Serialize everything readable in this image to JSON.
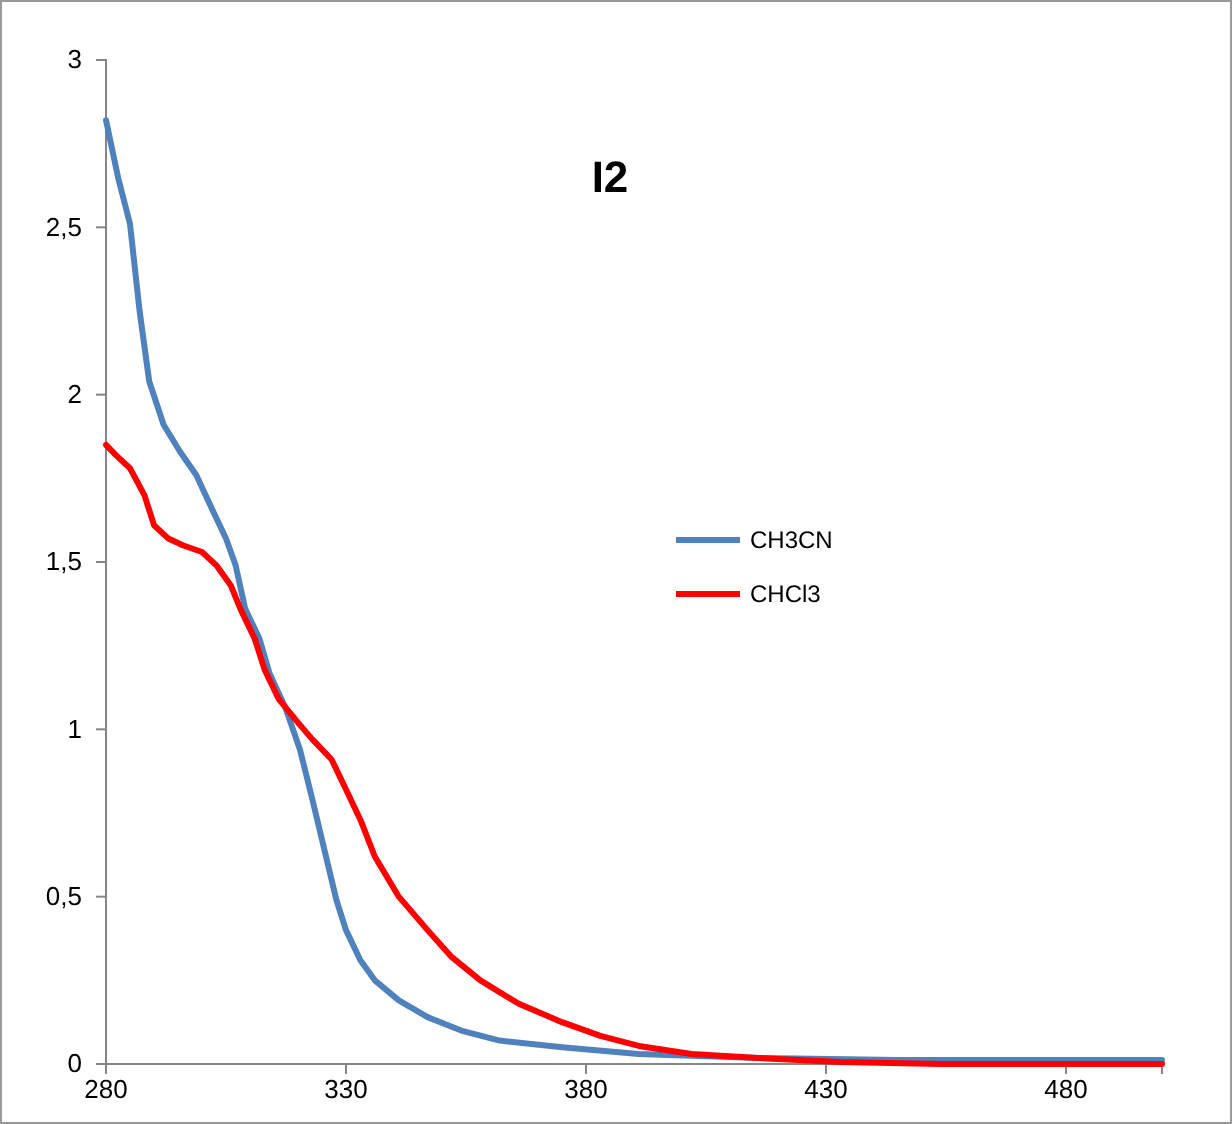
{
  "chart_data": {
    "type": "line",
    "title": "I2",
    "xlim": [
      280,
      500
    ],
    "xticks": [
      280,
      330,
      380,
      430,
      480
    ],
    "ylim": [
      0,
      3
    ],
    "yticks": [
      0,
      {
        "value": 0.5,
        "label": "0,5"
      },
      1,
      {
        "value": 1.5,
        "label": "1,5"
      },
      2,
      {
        "value": 2.5,
        "label": "2,5"
      },
      3
    ],
    "grid": false,
    "legend": "right",
    "marker": "none",
    "line_style": "solid",
    "series": [
      {
        "name": "CH3CN",
        "color": "#4f81bd",
        "x": [
          280,
          282.5,
          285,
          287,
          289,
          292,
          295.4,
          298.8,
          301.7,
          305,
          307,
          309,
          312,
          314,
          317.5,
          320.4,
          323,
          326,
          328,
          330,
          333,
          336,
          341,
          347,
          354,
          362,
          375,
          391,
          416,
          445,
          500
        ],
        "values": [
          2.82,
          2.65,
          2.51,
          2.25,
          2.04,
          1.91,
          1.83,
          1.76,
          1.67,
          1.57,
          1.49,
          1.36,
          1.27,
          1.17,
          1.06,
          0.94,
          0.79,
          0.61,
          0.49,
          0.4,
          0.31,
          0.25,
          0.19,
          0.14,
          0.1,
          0.07,
          0.05,
          0.03,
          0.018,
          0.012,
          0.012
        ]
      },
      {
        "name": "CHCl3",
        "color": "#ff0000",
        "x": [
          280,
          282,
          285,
          288,
          290,
          293,
          296,
          300,
          303,
          306,
          308,
          311,
          313,
          316,
          320,
          323,
          327,
          330,
          333,
          336,
          341,
          347,
          352,
          358,
          366,
          375,
          383,
          391,
          402,
          416,
          433,
          454,
          500
        ],
        "values": [
          1.85,
          1.82,
          1.78,
          1.7,
          1.61,
          1.57,
          1.55,
          1.53,
          1.49,
          1.43,
          1.36,
          1.27,
          1.18,
          1.09,
          1.02,
          0.97,
          0.91,
          0.82,
          0.73,
          0.62,
          0.5,
          0.4,
          0.32,
          0.25,
          0.18,
          0.125,
          0.084,
          0.054,
          0.03,
          0.018,
          0.006,
          0,
          0
        ]
      }
    ]
  }
}
